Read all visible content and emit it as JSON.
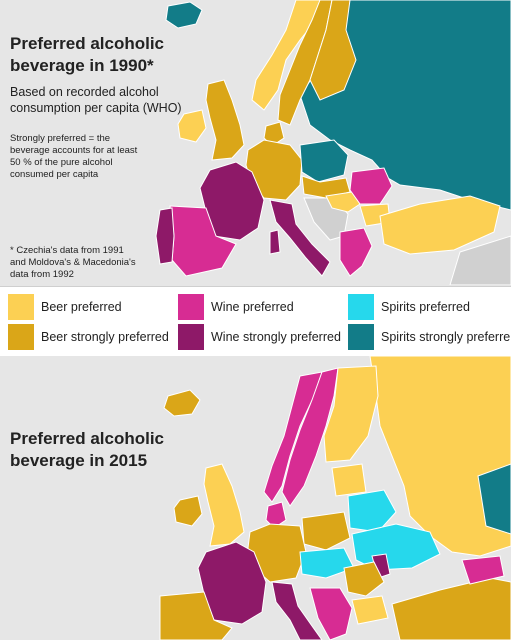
{
  "map_1990": {
    "title_line1": "Preferred alcoholic",
    "title_line2": "beverage in 1990*",
    "subtitle_line1": "Based on recorded alcohol",
    "subtitle_line2": "consumption per capita (WHO)",
    "definition_line1": "Strongly preferred = the",
    "definition_line2": "beverage accounts for at least",
    "definition_line3": "50 % of the pure alcohol",
    "definition_line4": "consumed per capita",
    "footnote_line1": "* Czechia's data from 1991",
    "footnote_line2": "and Moldova's & Macedonia's",
    "footnote_line3": "data from 1992",
    "regions": [
      {
        "region": "Iceland",
        "category": "spirits_strong"
      },
      {
        "region": "Norway",
        "category": "beer"
      },
      {
        "region": "Sweden",
        "category": "beer_strong"
      },
      {
        "region": "Finland",
        "category": "beer_strong"
      },
      {
        "region": "Soviet Union",
        "category": "spirits_strong"
      },
      {
        "region": "Ireland",
        "category": "beer"
      },
      {
        "region": "Great Britain",
        "category": "beer_strong"
      },
      {
        "region": "Denmark",
        "category": "beer_strong"
      },
      {
        "region": "Germany",
        "category": "beer_strong"
      },
      {
        "region": "Poland",
        "category": "spirits_strong"
      },
      {
        "region": "Czechoslovakia",
        "category": "beer_strong"
      },
      {
        "region": "France",
        "category": "wine_strong"
      },
      {
        "region": "Spain",
        "category": "wine"
      },
      {
        "region": "Portugal",
        "category": "wine_strong"
      },
      {
        "region": "Italy",
        "category": "wine_strong"
      },
      {
        "region": "Romania",
        "category": "wine"
      },
      {
        "region": "Greece",
        "category": "wine"
      },
      {
        "region": "Turkey",
        "category": "beer"
      }
    ]
  },
  "legend": {
    "items": [
      {
        "key": "beer",
        "label": "Beer preferred",
        "color": "#fcd053"
      },
      {
        "key": "beer_strong",
        "label": "Beer strongly preferred",
        "color": "#daa618"
      },
      {
        "key": "wine",
        "label": "Wine preferred",
        "color": "#d72c93"
      },
      {
        "key": "wine_strong",
        "label": "Wine strongly preferred",
        "color": "#8e1968"
      },
      {
        "key": "spirits",
        "label": "Spirits preferred",
        "color": "#26d8ec"
      },
      {
        "key": "spirits_strong",
        "label": "Spirits strongly preferre",
        "color": "#127c88"
      }
    ]
  },
  "map_2015": {
    "title_line1": "Preferred alcoholic",
    "title_line2": "beverage in 2015",
    "regions": [
      {
        "region": "Iceland",
        "category": "beer_strong"
      },
      {
        "region": "Norway",
        "category": "wine"
      },
      {
        "region": "Sweden",
        "category": "wine"
      },
      {
        "region": "Finland",
        "category": "beer"
      },
      {
        "region": "Russia",
        "category": "beer"
      },
      {
        "region": "Ireland",
        "category": "beer"
      },
      {
        "region": "Great Britain",
        "category": "beer"
      },
      {
        "region": "Germany",
        "category": "beer_strong"
      },
      {
        "region": "Belarus",
        "category": "spirits"
      },
      {
        "region": "Ukraine",
        "category": "spirits"
      },
      {
        "region": "Kazakhstan",
        "category": "beer"
      },
      {
        "region": "France",
        "category": "wine_strong"
      },
      {
        "region": "Italy",
        "category": "wine_strong"
      },
      {
        "region": "Spain",
        "category": "beer_strong"
      }
    ]
  }
}
